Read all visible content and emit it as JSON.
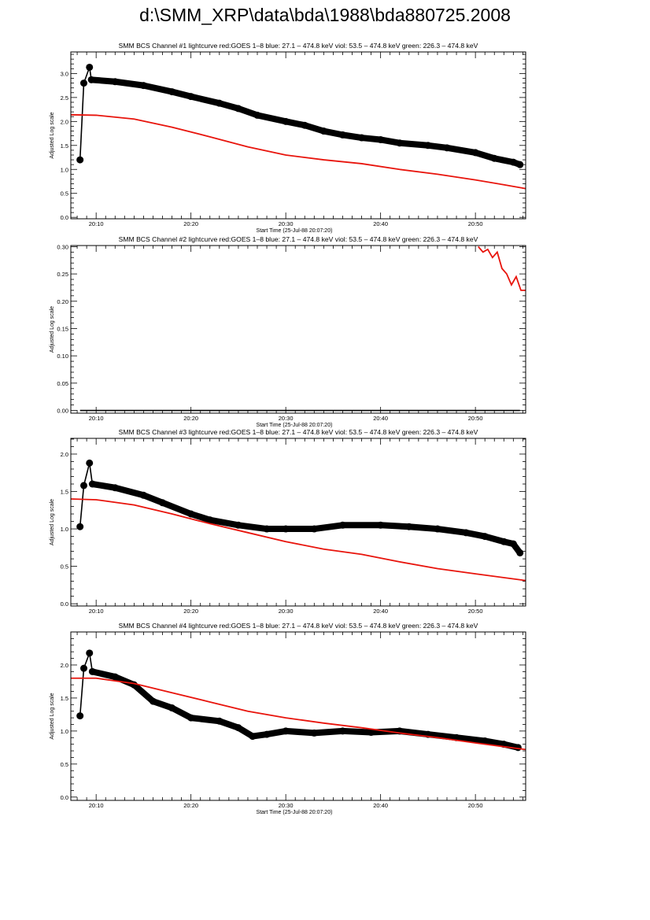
{
  "page_title": "d:\\SMM_XRP\\data\\bda\\1988\\bda880725.2008",
  "colors": {
    "black_series": "#000000",
    "red_series": "#e8140c"
  },
  "chart_data": [
    {
      "type": "line",
      "title": "SMM BCS Channel #1 lightcurve  red:GOES 1–8  blue: 27.1 – 474.8 keV  viol: 53.5 – 474.8 keV  green: 226.3 – 474.8 keV",
      "xlabel": "Start Time (25-Jul-88 20:07:20)",
      "ylabel": "Adjusted Log scale",
      "xlim_minutes_after_20h": [
        7.33,
        55.3
      ],
      "ylim": [
        -0.03,
        3.45
      ],
      "x_ticks": [
        {
          "v": 10,
          "label": "20:10"
        },
        {
          "v": 20,
          "label": "20:20"
        },
        {
          "v": 30,
          "label": "20:30"
        },
        {
          "v": 40,
          "label": "20:40"
        },
        {
          "v": 50,
          "label": "20:50"
        }
      ],
      "y_ticks": [
        {
          "v": 0,
          "label": "0.0"
        },
        {
          "v": 0.5,
          "label": "0.5"
        },
        {
          "v": 1,
          "label": "1.0"
        },
        {
          "v": 1.5,
          "label": "1.5"
        },
        {
          "v": 2,
          "label": "2.0"
        },
        {
          "v": 2.5,
          "label": "2.5"
        },
        {
          "v": 3,
          "label": "3.0"
        }
      ],
      "series": [
        {
          "name": "BCS channel",
          "color": "black",
          "markers": true,
          "x": [
            8.3,
            8.7,
            9.3,
            9.5,
            12,
            15,
            18,
            20,
            23,
            25,
            27,
            30,
            32,
            34,
            36,
            38,
            40,
            42,
            45,
            47,
            50,
            52,
            54,
            54.7
          ],
          "y": [
            1.2,
            2.8,
            3.13,
            2.87,
            2.83,
            2.75,
            2.62,
            2.52,
            2.38,
            2.27,
            2.13,
            2.0,
            1.92,
            1.8,
            1.72,
            1.66,
            1.62,
            1.55,
            1.5,
            1.45,
            1.35,
            1.23,
            1.15,
            1.1
          ]
        },
        {
          "name": "GOES 1-8",
          "color": "red",
          "markers": false,
          "x": [
            7.33,
            10,
            14,
            18,
            22,
            26,
            30,
            34,
            38,
            42,
            46,
            50,
            53,
            55.3
          ],
          "y": [
            2.14,
            2.13,
            2.05,
            1.88,
            1.68,
            1.47,
            1.3,
            1.2,
            1.12,
            1.0,
            0.9,
            0.78,
            0.68,
            0.6
          ]
        }
      ]
    },
    {
      "type": "line",
      "title": "SMM BCS Channel #2 lightcurve  red:GOES 1–8  blue: 27.1 – 474.8 keV  viol: 53.5 – 474.8 keV  green: 226.3 – 474.8 keV",
      "xlabel": "Start Time (25-Jul-88 20:07:20)",
      "ylabel": "Adjusted Log scale",
      "xlim_minutes_after_20h": [
        7.33,
        55.3
      ],
      "ylim": [
        -0.005,
        0.302
      ],
      "x_ticks": [
        {
          "v": 10,
          "label": "20:10"
        },
        {
          "v": 20,
          "label": "20:20"
        },
        {
          "v": 30,
          "label": "20:30"
        },
        {
          "v": 40,
          "label": "20:40"
        },
        {
          "v": 50,
          "label": "20:50"
        }
      ],
      "y_ticks": [
        {
          "v": 0,
          "label": "0.00"
        },
        {
          "v": 0.05,
          "label": "0.05"
        },
        {
          "v": 0.1,
          "label": "0.10"
        },
        {
          "v": 0.15,
          "label": "0.15"
        },
        {
          "v": 0.2,
          "label": "0.20"
        },
        {
          "v": 0.25,
          "label": "0.25"
        },
        {
          "v": 0.3,
          "label": "0.30"
        }
      ],
      "series": [
        {
          "name": "BCS channel",
          "color": "black",
          "markers": false,
          "x": [
            8.3,
            54.7
          ],
          "y": [
            0,
            0
          ]
        },
        {
          "name": "GOES 1-8",
          "color": "red",
          "markers": false,
          "x": [
            50.3,
            50.8,
            51.3,
            51.8,
            52.3,
            52.8,
            53.3,
            53.8,
            54.3,
            54.8,
            55.3
          ],
          "y": [
            0.3,
            0.29,
            0.295,
            0.28,
            0.29,
            0.26,
            0.25,
            0.23,
            0.245,
            0.22,
            0.22
          ]
        }
      ]
    },
    {
      "type": "line",
      "title": "SMM BCS Channel #3 lightcurve  red:GOES 1–8  blue: 27.1 – 474.8 keV  viol: 53.5 – 474.8 keV  green: 226.3 – 474.8 keV",
      "xlabel": "",
      "ylabel": "Adjusted Log scale",
      "xlim_minutes_after_20h": [
        7.33,
        55.3
      ],
      "ylim": [
        -0.03,
        2.21
      ],
      "x_ticks": [
        {
          "v": 10,
          "label": "20:10"
        },
        {
          "v": 20,
          "label": "20:20"
        },
        {
          "v": 30,
          "label": "20:30"
        },
        {
          "v": 40,
          "label": "20:40"
        },
        {
          "v": 50,
          "label": "20:50"
        }
      ],
      "y_ticks": [
        {
          "v": 0,
          "label": "0.0"
        },
        {
          "v": 0.5,
          "label": "0.5"
        },
        {
          "v": 1,
          "label": "1.0"
        },
        {
          "v": 1.5,
          "label": "1.5"
        },
        {
          "v": 2,
          "label": "2.0"
        }
      ],
      "series": [
        {
          "name": "BCS channel",
          "color": "black",
          "markers": true,
          "x": [
            8.3,
            8.7,
            9.3,
            9.6,
            12,
            15,
            17,
            20,
            22,
            25,
            28,
            30,
            33,
            36,
            40,
            43,
            46,
            49,
            51,
            53,
            54,
            54.7
          ],
          "y": [
            1.03,
            1.58,
            1.88,
            1.6,
            1.55,
            1.45,
            1.35,
            1.2,
            1.12,
            1.05,
            1.0,
            1.0,
            1.0,
            1.05,
            1.05,
            1.03,
            1.0,
            0.95,
            0.9,
            0.83,
            0.8,
            0.68
          ]
        },
        {
          "name": "GOES 1-8",
          "color": "red",
          "markers": false,
          "x": [
            7.33,
            10,
            14,
            18,
            22,
            26,
            30,
            34,
            38,
            42,
            46,
            50,
            55.3
          ],
          "y": [
            1.4,
            1.39,
            1.32,
            1.2,
            1.07,
            0.95,
            0.83,
            0.73,
            0.66,
            0.56,
            0.47,
            0.4,
            0.31
          ]
        }
      ]
    },
    {
      "type": "line",
      "title": "SMM BCS Channel #4 lightcurve  red:GOES 1–8  blue: 27.1 – 474.8 keV  viol: 53.5 – 474.8 keV  green: 226.3 – 474.8 keV",
      "xlabel": "Start Time (25-Jul-88 20:07:20)",
      "ylabel": "Adjusted Log scale",
      "xlim_minutes_after_20h": [
        7.33,
        55.3
      ],
      "ylim": [
        -0.05,
        2.5
      ],
      "x_ticks": [
        {
          "v": 10,
          "label": "20:10"
        },
        {
          "v": 20,
          "label": "20:20"
        },
        {
          "v": 30,
          "label": "20:30"
        },
        {
          "v": 40,
          "label": "20:40"
        },
        {
          "v": 50,
          "label": "20:50"
        }
      ],
      "y_ticks": [
        {
          "v": 0,
          "label": "0.0"
        },
        {
          "v": 0.5,
          "label": "0.5"
        },
        {
          "v": 1,
          "label": "1.0"
        },
        {
          "v": 1.5,
          "label": "1.5"
        },
        {
          "v": 2,
          "label": "2.0"
        }
      ],
      "series": [
        {
          "name": "BCS channel",
          "color": "black",
          "markers": true,
          "x": [
            8.3,
            8.7,
            9.3,
            9.6,
            12,
            14,
            16,
            18,
            20,
            23,
            25,
            26.5,
            28,
            30,
            33,
            36,
            39,
            42,
            45,
            48,
            51,
            53,
            54.5
          ],
          "y": [
            1.23,
            1.95,
            2.18,
            1.9,
            1.82,
            1.7,
            1.45,
            1.35,
            1.2,
            1.15,
            1.05,
            0.92,
            0.95,
            1.0,
            0.97,
            1.0,
            0.98,
            1.0,
            0.95,
            0.9,
            0.85,
            0.8,
            0.75
          ]
        },
        {
          "name": "GOES 1-8",
          "color": "red",
          "markers": false,
          "x": [
            7.33,
            10,
            14,
            18,
            22,
            26,
            30,
            34,
            38,
            42,
            46,
            50,
            55.3
          ],
          "y": [
            1.8,
            1.8,
            1.72,
            1.58,
            1.44,
            1.3,
            1.2,
            1.12,
            1.05,
            0.97,
            0.9,
            0.82,
            0.72
          ]
        }
      ]
    }
  ]
}
